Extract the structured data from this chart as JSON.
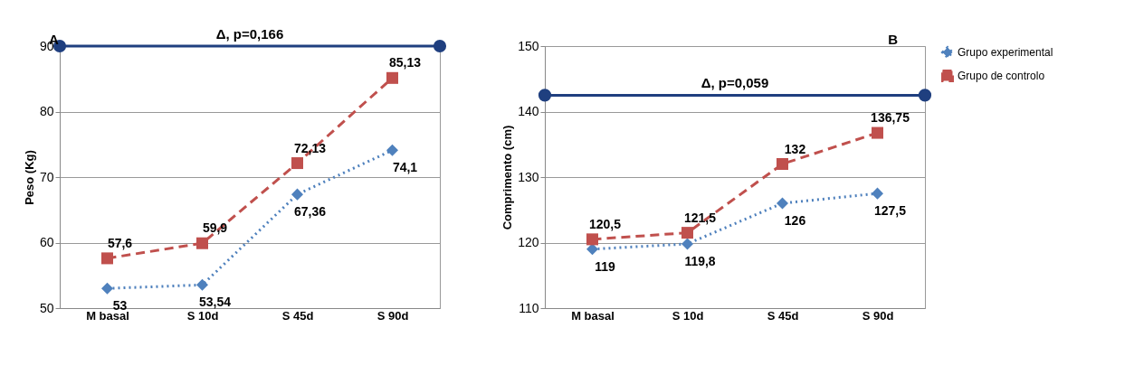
{
  "chart_data": [
    {
      "type": "line",
      "categories": [
        "M basal",
        "S 10d",
        "S 45d",
        "S 90d"
      ],
      "ylabel": "Peso (Kg)",
      "ylim": [
        50,
        90
      ],
      "yticks": [
        50,
        60,
        70,
        80,
        90
      ],
      "grid": "y",
      "legend": false,
      "annotations": [
        "A",
        {
          "text": "Δ, p=0,166",
          "y": 90
        }
      ],
      "ref_lines": [
        {
          "axis": "y",
          "value": 90,
          "color": "#1f3f7f"
        }
      ],
      "series": [
        {
          "color": "#4f81bd",
          "marker": "diamond",
          "line_style": "dotted",
          "values": [
            53,
            53.54,
            67.36,
            74.1
          ],
          "value_labels": [
            "53",
            "53,54",
            "67,36",
            "74,1"
          ]
        },
        {
          "color": "#c0504d",
          "marker": "square",
          "line_style": "dashed",
          "values": [
            57.6,
            59.9,
            72.13,
            85.13
          ],
          "value_labels": [
            "57,6",
            "59,9",
            "72,13",
            "85,13"
          ]
        }
      ]
    },
    {
      "type": "line",
      "categories": [
        "M basal",
        "S 10d",
        "S 45d",
        "S 90d"
      ],
      "ylabel": "Comprimento (cm)",
      "ylim": [
        110,
        150
      ],
      "yticks": [
        110,
        120,
        130,
        140,
        150
      ],
      "grid": "y",
      "legend": "right",
      "annotations": [
        "B",
        {
          "text": "Δ, p=0,059",
          "y": 142.5
        }
      ],
      "ref_lines": [
        {
          "axis": "y",
          "value": 142.5,
          "color": "#1f3f7f"
        }
      ],
      "series": [
        {
          "name": "Grupo experimental",
          "color": "#4f81bd",
          "marker": "diamond",
          "line_style": "dotted",
          "values": [
            119,
            119.8,
            126,
            127.5
          ],
          "value_labels": [
            "119",
            "119,8",
            "126",
            "127,5"
          ]
        },
        {
          "name": "Grupo de controlo",
          "color": "#c0504d",
          "marker": "square",
          "line_style": "dashed",
          "values": [
            120.5,
            121.5,
            132,
            136.75
          ],
          "value_labels": [
            "120,5",
            "121,5",
            "132",
            "136,75"
          ]
        }
      ]
    }
  ]
}
